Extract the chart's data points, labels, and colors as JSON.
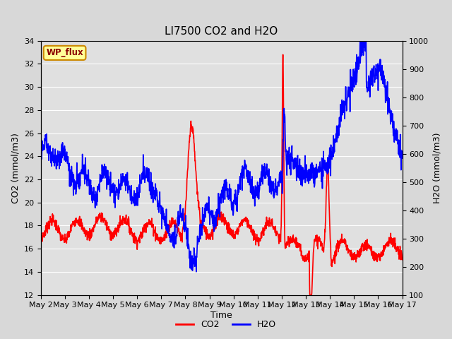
{
  "title": "LI7500 CO2 and H2O",
  "xlabel": "Time",
  "ylabel_left": "CO2 (mmol/m3)",
  "ylabel_right": "H2O (mmol/m3)",
  "annotation": "WP_flux",
  "ylim_left": [
    12,
    34
  ],
  "ylim_right": [
    100,
    1000
  ],
  "yticks_left": [
    12,
    14,
    16,
    18,
    20,
    22,
    24,
    26,
    28,
    30,
    32,
    34
  ],
  "yticks_right": [
    100,
    200,
    300,
    400,
    500,
    600,
    700,
    800,
    900,
    1000
  ],
  "xtick_labels": [
    "May 2",
    "May 3",
    "May 4",
    "May 5",
    "May 6",
    "May 7",
    "May 8",
    "May 9",
    "May 10",
    "May 11",
    "May 12",
    "May 13",
    "May 14",
    "May 15",
    "May 16",
    "May 17"
  ],
  "co2_color": "#ff0000",
  "h2o_color": "#0000ff",
  "fig_bg_color": "#d8d8d8",
  "plot_bg_color": "#e0e0e0",
  "grid_color": "#ffffff",
  "annotation_bg": "#ffff99",
  "annotation_border": "#cc8800",
  "annotation_text_color": "#8B0000",
  "legend_co2": "CO2",
  "legend_h2o": "H2O",
  "title_fontsize": 11,
  "axis_fontsize": 9,
  "tick_fontsize": 8,
  "line_width": 1.2
}
